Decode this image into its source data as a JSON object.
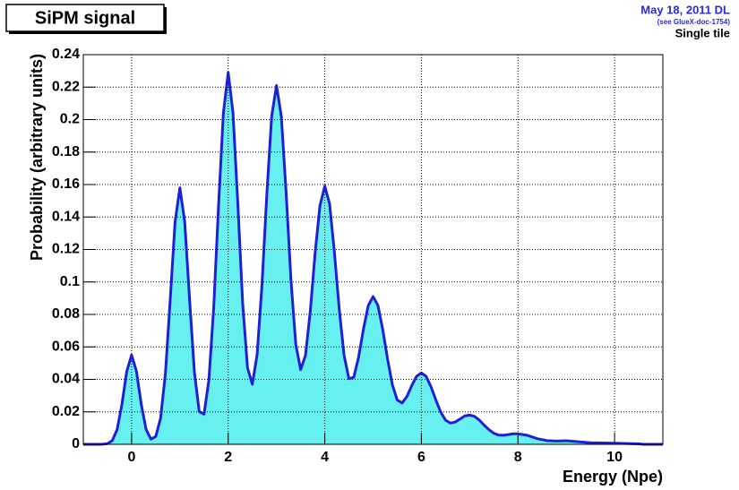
{
  "chart_data": {
    "type": "area",
    "title": "SiPM signal",
    "annotations": [
      "May 18, 2011 DL",
      "(see GlueX-doc-1754)",
      "Single tile"
    ],
    "x_label": "Energy (Npe)",
    "y_label": "Probability (arbitrary units)",
    "x": [
      -1,
      -0.7,
      -0.6,
      -0.5,
      -0.4,
      -0.3,
      -0.2,
      -0.1,
      0,
      0.1,
      0.2,
      0.3,
      0.4,
      0.5,
      0.6,
      0.7,
      0.8,
      0.9,
      1,
      1.1,
      1.2,
      1.3,
      1.4,
      1.5,
      1.6,
      1.7,
      1.8,
      1.9,
      2,
      2.1,
      2.2,
      2.3,
      2.4,
      2.5,
      2.6,
      2.7,
      2.8,
      2.9,
      3,
      3.1,
      3.2,
      3.3,
      3.4,
      3.5,
      3.6,
      3.7,
      3.8,
      3.9,
      4,
      4.1,
      4.2,
      4.3,
      4.4,
      4.5,
      4.6,
      4.7,
      4.8,
      4.9,
      5,
      5.1,
      5.2,
      5.3,
      5.4,
      5.5,
      5.6,
      5.7,
      5.8,
      5.9,
      6,
      6.1,
      6.2,
      6.3,
      6.4,
      6.5,
      6.6,
      6.7,
      6.8,
      6.9,
      7,
      7.1,
      7.2,
      7.3,
      7.4,
      7.5,
      7.6,
      7.7,
      7.8,
      7.9,
      8,
      8.2,
      8.4,
      8.6,
      8.8,
      9,
      9.5,
      10,
      10.5,
      10.6,
      11
    ],
    "values": [
      0,
      0,
      0.0001,
      0.0004,
      0.0023,
      0.0091,
      0.0247,
      0.045,
      0.055,
      0.045,
      0.0247,
      0.0092,
      0.0032,
      0.0048,
      0.0161,
      0.0436,
      0.0893,
      0.137,
      0.158,
      0.137,
      0.0895,
      0.0446,
      0.0202,
      0.0186,
      0.0396,
      0.0843,
      0.147,
      0.204,
      0.229,
      0.204,
      0.148,
      0.0869,
      0.0471,
      0.037,
      0.0556,
      0.0985,
      0.154,
      0.202,
      0.221,
      0.202,
      0.155,
      0.101,
      0.0615,
      0.046,
      0.0548,
      0.0821,
      0.118,
      0.147,
      0.159,
      0.148,
      0.118,
      0.083,
      0.0547,
      0.0404,
      0.0413,
      0.0537,
      0.0709,
      0.0855,
      0.091,
      0.0856,
      0.0707,
      0.0525,
      0.0366,
      0.0273,
      0.0255,
      0.0294,
      0.0361,
      0.0419,
      0.044,
      0.0418,
      0.0354,
      0.0273,
      0.0199,
      0.0149,
      0.0131,
      0.0137,
      0.0156,
      0.0175,
      0.018,
      0.0172,
      0.0149,
      0.0118,
      0.009,
      0.0068,
      0.0057,
      0.0056,
      0.006,
      0.0065,
      0.0065,
      0.0055,
      0.0035,
      0.0023,
      0.002,
      0.0022,
      0.001,
      0.0007,
      0.0003,
      0,
      0
    ],
    "color": "#1f1fd6",
    "fill_color": "#66f0f0",
    "xlim": [
      -1,
      11
    ],
    "xticks": [
      0,
      2,
      4,
      6,
      8,
      10
    ],
    "ylim": [
      0,
      0.24
    ],
    "yticks": [
      0,
      0.02,
      0.04,
      0.06,
      0.08,
      0.1,
      0.12,
      0.14,
      0.16,
      0.18,
      0.2,
      0.22,
      0.24
    ],
    "grid": true
  }
}
